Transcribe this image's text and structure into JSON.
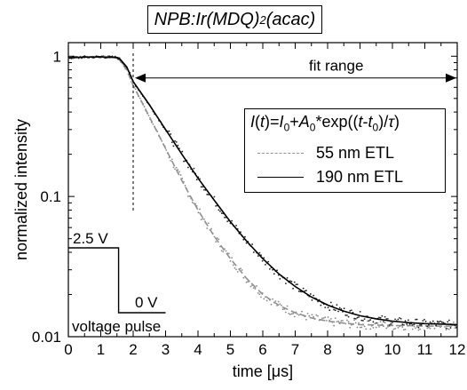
{
  "chart_data": {
    "type": "scatter",
    "title_main": "NPB:Ir(MDQ)",
    "title_sub": "2",
    "title_tail": "(acac)",
    "xlabel": "time [μs]",
    "ylabel": "normalized intensity",
    "xlim": [
      0,
      12
    ],
    "ylim": [
      0.01,
      1.25
    ],
    "y_scale": "log",
    "x_ticks": [
      0,
      1,
      2,
      3,
      4,
      5,
      6,
      7,
      8,
      9,
      10,
      11,
      12
    ],
    "x_tick_labels": [
      "0",
      "1",
      "2",
      "3",
      "4",
      "5",
      "6",
      "7",
      "8",
      "9",
      "10",
      "11",
      "12"
    ],
    "y_ticks": [
      1,
      0.1,
      0.01
    ],
    "y_tick_labels": [
      "1",
      "0.1",
      "0.01"
    ],
    "legend": {
      "placement": "upper-right",
      "formula": "I(t)=I0+A0*exp((t-t0)/τ)",
      "entries": [
        "55 nm ETL",
        "190 nm ETL"
      ]
    },
    "annotations": {
      "fit_range": "fit range",
      "voltage_high": "2.5 V",
      "voltage_low": "0 V",
      "voltage_pulse": "voltage pulse",
      "fit_start_x": 2.0,
      "fit_end_x": 12.0,
      "fit_arrow_y": 0.7,
      "pulse_switch_x": 1.55
    },
    "series": [
      {
        "name": "55 nm ETL",
        "color": "#909090",
        "style": "dashed",
        "x": [
          0,
          0.5,
          1.0,
          1.5,
          1.6,
          1.8,
          2.0,
          2.5,
          3.0,
          3.5,
          4.0,
          4.5,
          5.0,
          5.5,
          6.0,
          6.5,
          7.0,
          7.5,
          8.0,
          8.5,
          9.0,
          9.5,
          10.0,
          10.5,
          11.0,
          11.5,
          12.0
        ],
        "y": [
          0.975,
          0.985,
          0.99,
          0.98,
          0.93,
          0.8,
          0.62,
          0.37,
          0.22,
          0.13,
          0.08,
          0.052,
          0.036,
          0.026,
          0.02,
          0.0167,
          0.0148,
          0.0136,
          0.0129,
          0.0125,
          0.0122,
          0.0121,
          0.012,
          0.012,
          0.0119,
          0.0119,
          0.0119
        ]
      },
      {
        "name": "190 nm ETL",
        "color": "#000000",
        "style": "solid",
        "x": [
          0,
          0.5,
          1.0,
          1.5,
          1.6,
          1.8,
          2.0,
          2.5,
          3.0,
          3.5,
          4.0,
          4.5,
          5.0,
          5.5,
          6.0,
          6.5,
          7.0,
          7.5,
          8.0,
          8.5,
          9.0,
          9.5,
          10.0,
          10.5,
          11.0,
          11.5,
          12.0
        ],
        "y": [
          0.975,
          0.985,
          0.99,
          0.98,
          0.95,
          0.84,
          0.66,
          0.45,
          0.3,
          0.2,
          0.135,
          0.094,
          0.066,
          0.048,
          0.036,
          0.028,
          0.0228,
          0.0192,
          0.0168,
          0.0152,
          0.0141,
          0.0134,
          0.0129,
          0.0126,
          0.0124,
          0.0123,
          0.0122
        ]
      }
    ]
  }
}
